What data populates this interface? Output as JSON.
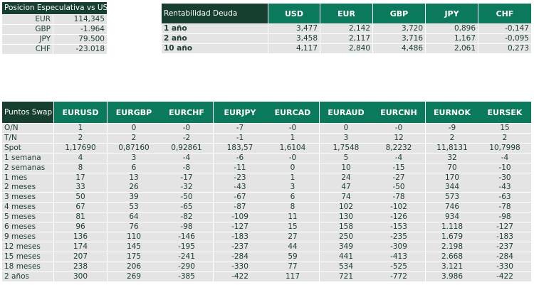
{
  "posicion": {
    "title": "Posicion Especulativa vs USD",
    "rows": [
      [
        "EUR",
        "114,345"
      ],
      [
        "GBP",
        "-1.964"
      ],
      [
        "JPY",
        "79.500"
      ],
      [
        "CHF",
        "-23.018"
      ]
    ]
  },
  "rentabilidad": {
    "title": "Rentabilidad Deuda",
    "columns": [
      "USD",
      "EUR",
      "GBP",
      "JPY",
      "CHF"
    ],
    "rows": [
      [
        "1 año",
        "3,477",
        "2,142",
        "3,720",
        "0,896",
        "-0,147"
      ],
      [
        "2 año",
        "3,458",
        "2,117",
        "3,716",
        "1,167",
        "-0,095"
      ],
      [
        "10 año",
        "4,117",
        "2,840",
        "4,486",
        "2,061",
        "0,273"
      ]
    ]
  },
  "swap": {
    "title": "Puntos Swap",
    "columns": [
      "EURUSD",
      "EURGBP",
      "EURCHF",
      "EURJPY",
      "EURCAD",
      "EURAUD",
      "EURCNH",
      "EURNOK",
      "EURSEK"
    ],
    "rows": [
      [
        "O/N",
        "1",
        "0",
        "-0",
        "-7",
        "-0",
        "0",
        "-0",
        "-9",
        "15"
      ],
      [
        "T/N",
        "2",
        "2",
        "-2",
        "-1",
        "1",
        "3",
        "12",
        "2",
        "2"
      ],
      [
        "Spot",
        "1,17690",
        "0,87160",
        "0,92861",
        "183,57",
        "1,6104",
        "1,7548",
        "8,2232",
        "11,8131",
        "10,7998"
      ],
      [
        "1 semana",
        "4",
        "3",
        "-4",
        "-6",
        "-0",
        "5",
        "-4",
        "32",
        "-4"
      ],
      [
        "2 semanas",
        "8",
        "6",
        "-8",
        "-11",
        "0",
        "10",
        "-15",
        "70",
        "-10"
      ],
      [
        "1 mes",
        "17",
        "13",
        "-17",
        "-23",
        "1",
        "24",
        "-27",
        "170",
        "-30"
      ],
      [
        "2 meses",
        "33",
        "26",
        "-32",
        "-43",
        "3",
        "47",
        "-50",
        "344",
        "-43"
      ],
      [
        "3 meses",
        "50",
        "39",
        "-50",
        "-67",
        "6",
        "74",
        "-78",
        "573",
        "-63"
      ],
      [
        "4 meses",
        "67",
        "53",
        "-65",
        "-87",
        "8",
        "102",
        "-102",
        "746",
        "-78"
      ],
      [
        "5 meses",
        "81",
        "64",
        "-82",
        "-109",
        "11",
        "130",
        "-126",
        "934",
        "-98"
      ],
      [
        "6 meses",
        "96",
        "76",
        "-98",
        "-127",
        "15",
        "158",
        "-153",
        "1.118",
        "-127"
      ],
      [
        "9 meses",
        "136",
        "110",
        "-146",
        "-183",
        "27",
        "250",
        "-235",
        "1.679",
        "-183"
      ],
      [
        "12 meses",
        "174",
        "145",
        "-195",
        "-237",
        "44",
        "349",
        "-309",
        "2.198",
        "-237"
      ],
      [
        "15 meses",
        "207",
        "175",
        "-241",
        "-284",
        "59",
        "441",
        "-413",
        "2.668",
        "-284"
      ],
      [
        "18 meses",
        "238",
        "206",
        "-290",
        "-330",
        "77",
        "534",
        "-525",
        "3.121",
        "-330"
      ],
      [
        "2 años",
        "300",
        "269",
        "-385",
        "-422",
        "117",
        "721",
        "-772",
        "3.986",
        "-422"
      ]
    ]
  }
}
